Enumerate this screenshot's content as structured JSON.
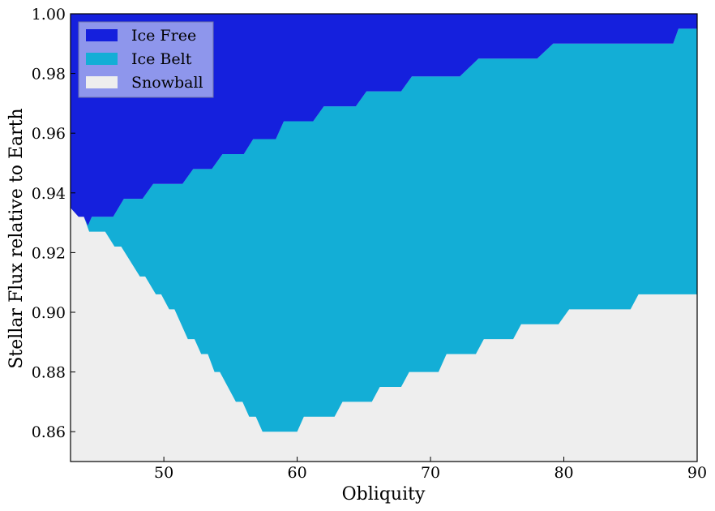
{
  "chart_data": {
    "type": "area",
    "xlabel": "Obliquity",
    "ylabel": "Stellar Flux relative to Earth",
    "xlim": [
      43,
      90
    ],
    "ylim": [
      0.85,
      1.0
    ],
    "xticks": [
      50,
      60,
      70,
      80,
      90
    ],
    "yticks": [
      0.86,
      0.88,
      0.9,
      0.92,
      0.94,
      0.96,
      0.98,
      1.0
    ],
    "ytick_labels": [
      "0.86",
      "0.88",
      "0.90",
      "0.92",
      "0.94",
      "0.96",
      "0.98",
      "1.00"
    ],
    "grid": false,
    "legend_position": "top-left",
    "colors": {
      "ice_free": "#1520dd",
      "ice_belt": "#13aed6",
      "snowball": "#eeeeee",
      "legend_bg": "#8e96ec"
    },
    "regions": [
      {
        "name": "Ice Free",
        "color_key": "ice_free"
      },
      {
        "name": "Ice Belt",
        "color_key": "ice_belt"
      },
      {
        "name": "Snowball",
        "color_key": "snowball"
      }
    ],
    "upper_boundary": [
      [
        43,
        0.935
      ],
      [
        43.6,
        0.932
      ],
      [
        44.0,
        0.932
      ],
      [
        44.3,
        0.929
      ],
      [
        44.6,
        0.932
      ],
      [
        46.2,
        0.932
      ],
      [
        47.0,
        0.938
      ],
      [
        48.4,
        0.938
      ],
      [
        49.2,
        0.943
      ],
      [
        51.4,
        0.943
      ],
      [
        52.2,
        0.948
      ],
      [
        53.6,
        0.948
      ],
      [
        54.4,
        0.953
      ],
      [
        56.0,
        0.953
      ],
      [
        56.7,
        0.958
      ],
      [
        58.4,
        0.958
      ],
      [
        59.0,
        0.964
      ],
      [
        61.2,
        0.964
      ],
      [
        62.0,
        0.969
      ],
      [
        64.4,
        0.969
      ],
      [
        65.2,
        0.974
      ],
      [
        67.8,
        0.974
      ],
      [
        68.6,
        0.979
      ],
      [
        72.2,
        0.979
      ],
      [
        73.6,
        0.985
      ],
      [
        78.0,
        0.985
      ],
      [
        79.2,
        0.99
      ],
      [
        88.2,
        0.99
      ],
      [
        88.6,
        0.995
      ],
      [
        90,
        0.995
      ]
    ],
    "lower_boundary": [
      [
        43,
        0.935
      ],
      [
        43.6,
        0.932
      ],
      [
        44.0,
        0.932
      ],
      [
        44.4,
        0.927
      ],
      [
        45.6,
        0.927
      ],
      [
        46.3,
        0.922
      ],
      [
        46.8,
        0.922
      ],
      [
        48.2,
        0.912
      ],
      [
        48.6,
        0.912
      ],
      [
        49.4,
        0.906
      ],
      [
        49.8,
        0.906
      ],
      [
        50.4,
        0.901
      ],
      [
        50.8,
        0.901
      ],
      [
        51.8,
        0.891
      ],
      [
        52.3,
        0.891
      ],
      [
        52.8,
        0.886
      ],
      [
        53.3,
        0.886
      ],
      [
        53.8,
        0.88
      ],
      [
        54.2,
        0.88
      ],
      [
        55.4,
        0.87
      ],
      [
        55.9,
        0.87
      ],
      [
        56.4,
        0.865
      ],
      [
        56.9,
        0.865
      ],
      [
        57.4,
        0.86
      ],
      [
        60.0,
        0.86
      ],
      [
        60.5,
        0.865
      ],
      [
        62.8,
        0.865
      ],
      [
        63.4,
        0.87
      ],
      [
        65.6,
        0.87
      ],
      [
        66.2,
        0.875
      ],
      [
        67.8,
        0.875
      ],
      [
        68.4,
        0.88
      ],
      [
        70.6,
        0.88
      ],
      [
        71.2,
        0.886
      ],
      [
        73.4,
        0.886
      ],
      [
        74.0,
        0.891
      ],
      [
        76.2,
        0.891
      ],
      [
        76.8,
        0.896
      ],
      [
        79.6,
        0.896
      ],
      [
        80.4,
        0.901
      ],
      [
        85.0,
        0.901
      ],
      [
        85.6,
        0.906
      ],
      [
        90,
        0.906
      ]
    ]
  }
}
